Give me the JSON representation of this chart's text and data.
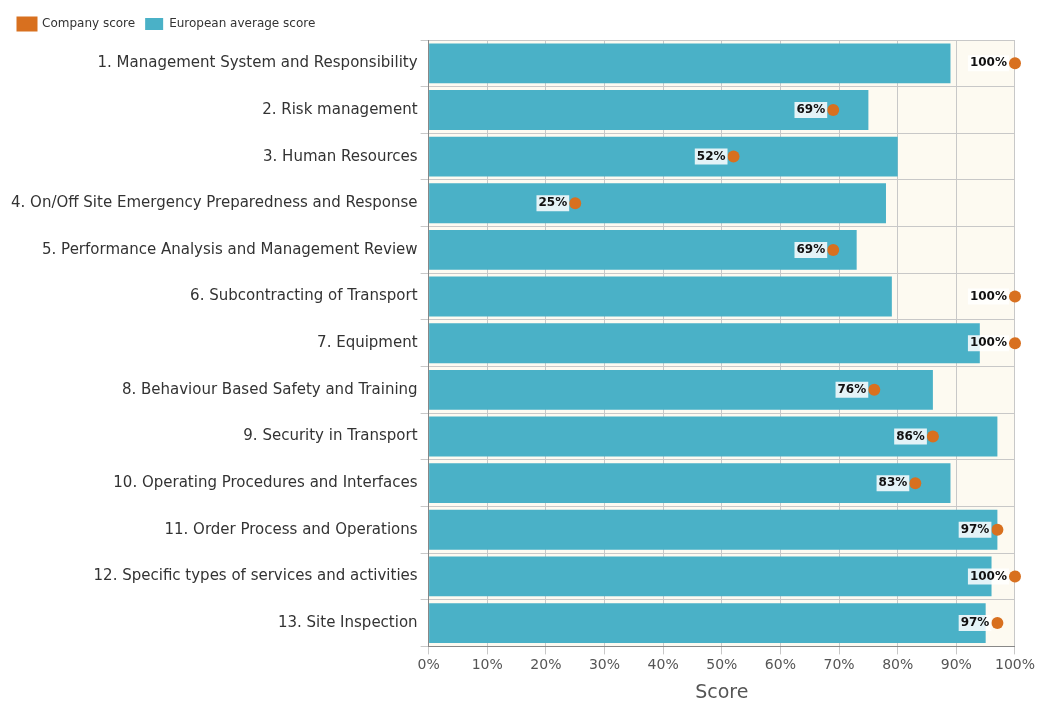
{
  "chart_data": {
    "type": "bar",
    "orientation": "horizontal",
    "xlabel": "Score",
    "categories": [
      "1. Management System and Responsibility",
      "2. Risk management",
      "3. Human Resources",
      "4. On/Off Site Emergency Preparedness and Response",
      "5. Performance Analysis and Management Review",
      "6. Subcontracting of Transport",
      "7. Equipment",
      "8. Behaviour Based Safety and Training",
      "9. Security in Transport",
      "10. Operating Procedures and Interfaces",
      "11. Order Process and Operations",
      "12. Specific types of services and activities",
      "13. Site Inspection"
    ],
    "series": [
      {
        "name": "European average score",
        "color": "#4ab1c7",
        "values": [
          89,
          75,
          80,
          78,
          73,
          79,
          94,
          86,
          97,
          89,
          97,
          96,
          95
        ]
      },
      {
        "name": "Company score",
        "type": "scatter",
        "color": "#d8701f",
        "values": [
          100,
          69,
          52,
          25,
          69,
          100,
          100,
          76,
          86,
          83,
          97,
          100,
          97
        ],
        "value_labels": [
          "100%",
          "69%",
          "52%",
          "25%",
          "69%",
          "100%",
          "100%",
          "76%",
          "86%",
          "83%",
          "97%",
          "100%",
          "97%"
        ]
      }
    ],
    "xlim": [
      0,
      100
    ],
    "xticks": [
      {
        "value": 0,
        "label": "0%"
      },
      {
        "value": 10,
        "label": "10%"
      },
      {
        "value": 20,
        "label": "20%"
      },
      {
        "value": 30,
        "label": "30%"
      },
      {
        "value": 40,
        "label": "40%"
      },
      {
        "value": 50,
        "label": "50%"
      },
      {
        "value": 60,
        "label": "60%"
      },
      {
        "value": 70,
        "label": "70%"
      },
      {
        "value": 80,
        "label": "80%"
      },
      {
        "value": 90,
        "label": "90%"
      },
      {
        "value": 100,
        "label": "100%"
      }
    ],
    "grid": true,
    "legend": "top left",
    "marker": "circle"
  }
}
